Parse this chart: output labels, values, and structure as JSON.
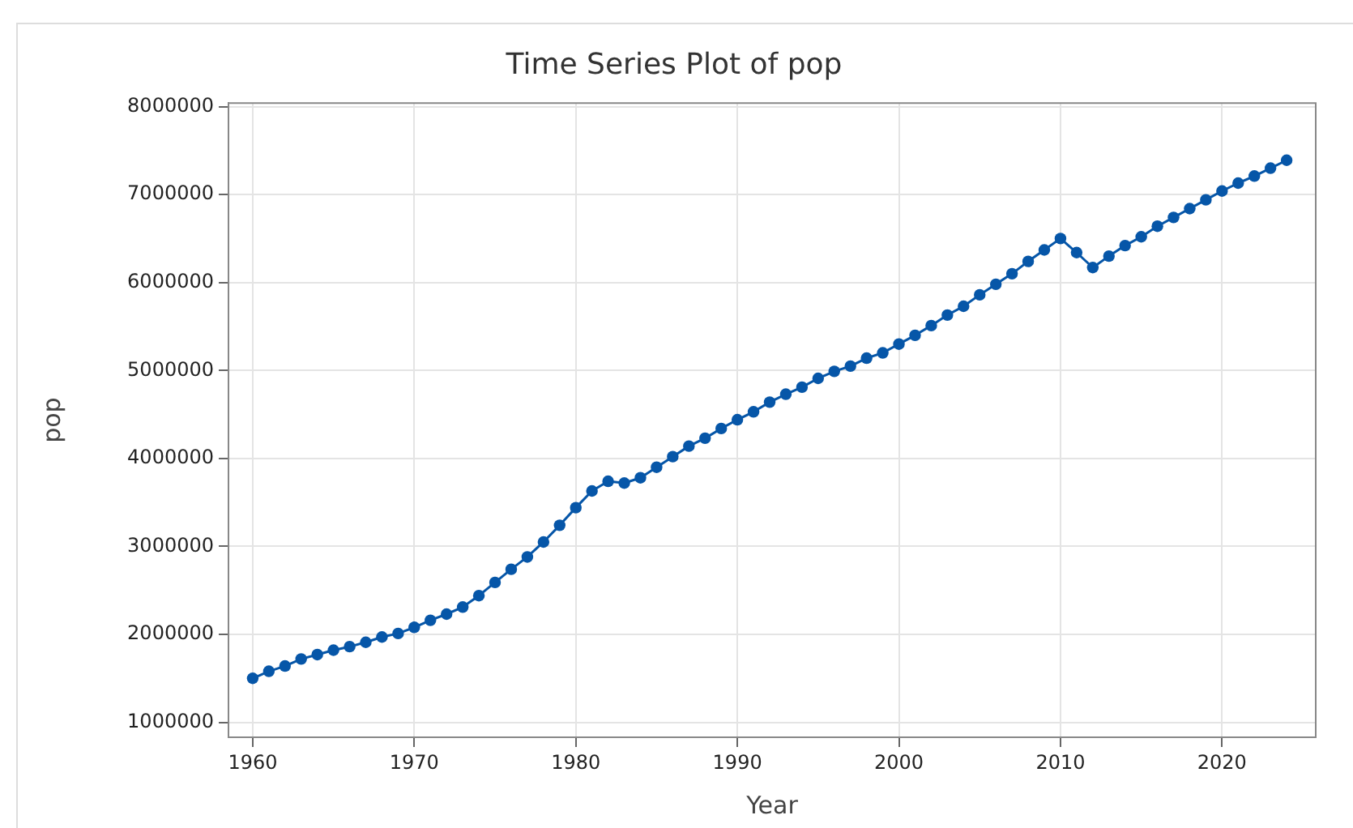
{
  "chart_data": {
    "type": "line",
    "title": "Time Series Plot of pop",
    "xlabel": "Year",
    "ylabel": "pop",
    "x": [
      1960,
      1961,
      1962,
      1963,
      1964,
      1965,
      1966,
      1967,
      1968,
      1969,
      1970,
      1971,
      1972,
      1973,
      1974,
      1975,
      1976,
      1977,
      1978,
      1979,
      1980,
      1981,
      1982,
      1983,
      1984,
      1985,
      1986,
      1987,
      1988,
      1989,
      1990,
      1991,
      1992,
      1993,
      1994,
      1995,
      1996,
      1997,
      1998,
      1999,
      2000,
      2001,
      2002,
      2003,
      2004,
      2005,
      2006,
      2007,
      2008,
      2009,
      2010,
      2011,
      2012,
      2013,
      2014,
      2015,
      2016,
      2017,
      2018,
      2019,
      2020,
      2021,
      2022,
      2023,
      2024
    ],
    "series": [
      {
        "color": "#0656a8",
        "values": [
          1500000,
          1580000,
          1640000,
          1720000,
          1770000,
          1820000,
          1860000,
          1910000,
          1970000,
          2010000,
          2080000,
          2160000,
          2230000,
          2310000,
          2440000,
          2590000,
          2740000,
          2880000,
          3050000,
          3240000,
          3440000,
          3630000,
          3740000,
          3720000,
          3780000,
          3900000,
          4020000,
          4140000,
          4230000,
          4340000,
          4440000,
          4530000,
          4640000,
          4730000,
          4810000,
          4910000,
          4990000,
          5050000,
          5140000,
          5200000,
          5300000,
          5400000,
          5510000,
          5630000,
          5730000,
          5860000,
          5980000,
          6100000,
          6240000,
          6370000,
          6500000,
          6340000,
          6170000,
          6300000,
          6420000,
          6520000,
          6640000,
          6740000,
          6840000,
          6940000,
          7040000,
          7130000,
          7210000,
          7300000,
          7390000
        ]
      }
    ],
    "xlim": [
      1958.5,
      2025.8
    ],
    "xticks": [
      1960,
      1970,
      1980,
      1990,
      2000,
      2010,
      2020
    ],
    "ylim": [
      830000,
      8040000
    ],
    "yticks": [
      1000000,
      2000000,
      3000000,
      4000000,
      5000000,
      6000000,
      7000000,
      8000000
    ],
    "grid": true,
    "legend": false,
    "marker": "circle",
    "line_style": "solid"
  }
}
